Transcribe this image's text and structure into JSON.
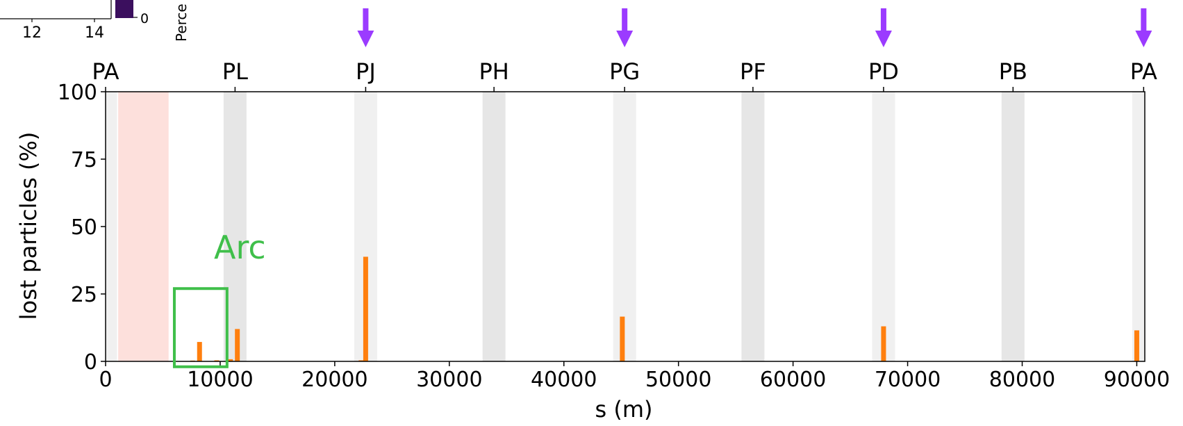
{
  "chart_data": {
    "type": "bar",
    "xlabel": "s (m)",
    "ylabel": "lost particles (%)",
    "xlim": [
      0,
      90700
    ],
    "ylim": [
      0,
      100
    ],
    "xticks": [
      0,
      10000,
      20000,
      30000,
      40000,
      50000,
      60000,
      70000,
      80000,
      90000
    ],
    "yticks": [
      0,
      25,
      50,
      75,
      100
    ],
    "grid": false,
    "bar_color": "#ff7f0e",
    "series": [
      {
        "x": [
          7600,
          8200,
          9700,
          10900,
          11500,
          22300,
          22700,
          45100,
          67900,
          90000
        ],
        "values": [
          0.3,
          7.2,
          0.4,
          0.8,
          12.0,
          0.4,
          38.8,
          16.6,
          13.0,
          11.5
        ]
      }
    ],
    "top_axis": {
      "labels": [
        "PA",
        "PL",
        "PJ",
        "PH",
        "PG",
        "PF",
        "PD",
        "PB",
        "PA"
      ],
      "positions": [
        0,
        11300,
        22700,
        33900,
        45300,
        56500,
        67900,
        79200,
        90600
      ]
    },
    "straight_sections": [
      {
        "start": 0,
        "end": 1000,
        "shade": "#f0f0f0"
      },
      {
        "start": 10300,
        "end": 12300,
        "shade": "#e6e6e6"
      },
      {
        "start": 21700,
        "end": 23700,
        "shade": "#f0f0f0"
      },
      {
        "start": 32900,
        "end": 34900,
        "shade": "#e6e6e6"
      },
      {
        "start": 44300,
        "end": 46300,
        "shade": "#f0f0f0"
      },
      {
        "start": 55500,
        "end": 57500,
        "shade": "#e6e6e6"
      },
      {
        "start": 66900,
        "end": 68900,
        "shade": "#f0f0f0"
      },
      {
        "start": 78200,
        "end": 80200,
        "shade": "#e6e6e6"
      },
      {
        "start": 89600,
        "end": 90700,
        "shade": "#f0f0f0"
      }
    ],
    "highlight_region": {
      "start": 1100,
      "end": 5500,
      "color": "#fde0dc"
    },
    "arrows": {
      "positions": [
        22700,
        45300,
        67900,
        90600
      ],
      "color": "#9b3bff"
    },
    "annotation": {
      "text": "Arc",
      "color": "#3fbf4a",
      "box_x": [
        6000,
        10600
      ],
      "box_y": [
        -2,
        27
      ]
    },
    "colorbar_fragment": {
      "tick_label": "0",
      "label": "Perce",
      "color": "#3b0f5e"
    },
    "inset_fragment": {
      "tick_labels": [
        "12",
        "14"
      ]
    }
  }
}
